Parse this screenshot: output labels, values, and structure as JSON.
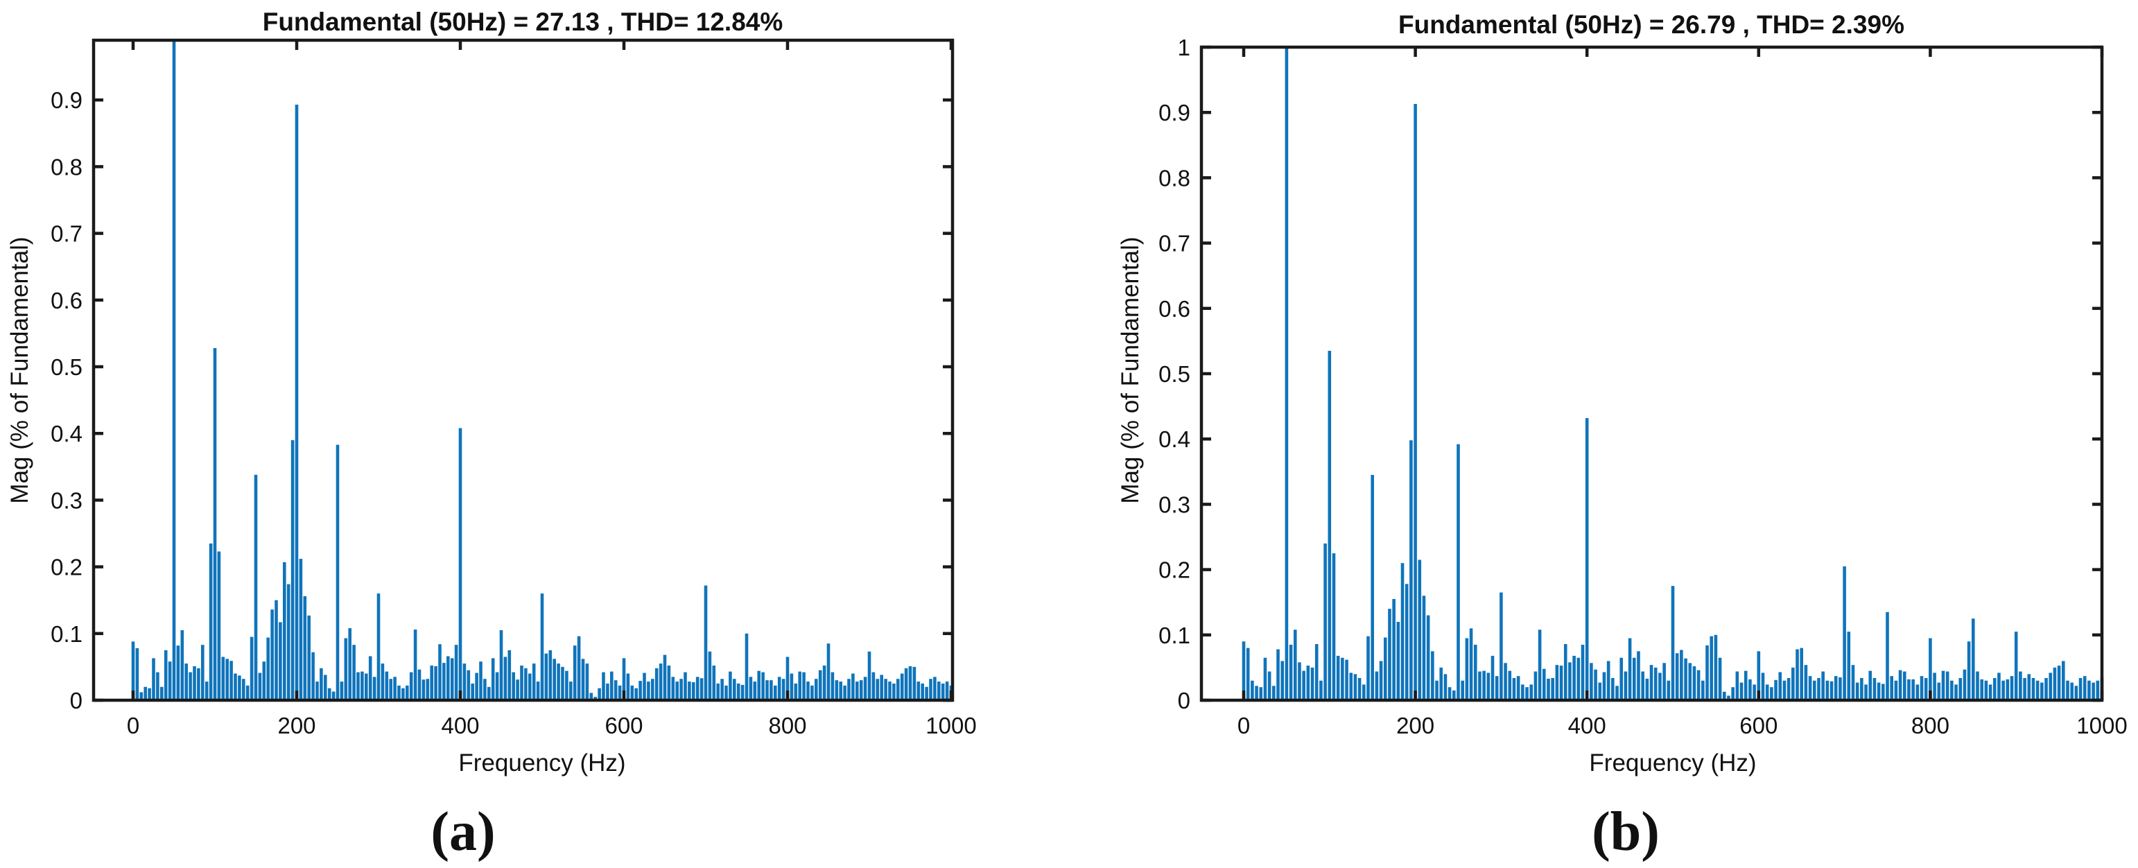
{
  "figure": {
    "background": "#FFFFFF",
    "description": "Two FFT harmonic spectrum plots (MATLAB powergui FFT analysis style), side by side"
  },
  "chart_data": [
    {
      "type": "bar",
      "panel": "a",
      "title": "Fundamental (50Hz) = 27.13 , THD= 12.84%",
      "xlabel": "Frequency (Hz)",
      "ylabel": "Mag (% of Fundamental)",
      "caption": "(a)",
      "fundamental_hz": 50,
      "fundamental_value": "27.13",
      "thd_percent": "12.84",
      "bar_color": "#0F74BB",
      "axis_color": "#1A1A1A",
      "x_start": 0,
      "x_step": 5,
      "xlim": [
        -50,
        1000
      ],
      "ylim": [
        0,
        0.99
      ],
      "grid": false,
      "legend": "none",
      "xticks": [
        0,
        200,
        400,
        600,
        800,
        1000
      ],
      "xtick_labels": [
        "0",
        "200",
        "400",
        "600",
        "800",
        "1000"
      ],
      "yticks": [
        0,
        0.1,
        0.2,
        0.3,
        0.4,
        0.5,
        0.6,
        0.7,
        0.8,
        0.9
      ],
      "ytick_labels": [
        "0",
        "0.1",
        "0.2",
        "0.3",
        "0.4",
        "0.5",
        "0.6",
        "0.7",
        "0.8",
        "0.9"
      ],
      "values": [
        0.088,
        0.078,
        0.012,
        0.02,
        0.018,
        0.063,
        0.042,
        0.02,
        0.075,
        0.058,
        0.99,
        0.082,
        0.105,
        0.055,
        0.042,
        0.051,
        0.048,
        0.083,
        0.028,
        0.235,
        0.528,
        0.223,
        0.065,
        0.062,
        0.059,
        0.04,
        0.037,
        0.032,
        0.022,
        0.095,
        0.338,
        0.041,
        0.058,
        0.094,
        0.136,
        0.15,
        0.117,
        0.207,
        0.174,
        0.39,
        0.893,
        0.212,
        0.156,
        0.127,
        0.072,
        0.028,
        0.048,
        0.038,
        0.018,
        0.013,
        0.383,
        0.028,
        0.093,
        0.108,
        0.083,
        0.042,
        0.043,
        0.04,
        0.066,
        0.035,
        0.16,
        0.055,
        0.043,
        0.032,
        0.035,
        0.022,
        0.018,
        0.022,
        0.042,
        0.106,
        0.046,
        0.031,
        0.032,
        0.052,
        0.051,
        0.084,
        0.056,
        0.066,
        0.063,
        0.083,
        0.408,
        0.055,
        0.045,
        0.025,
        0.041,
        0.058,
        0.032,
        0.02,
        0.063,
        0.042,
        0.105,
        0.065,
        0.075,
        0.042,
        0.031,
        0.052,
        0.048,
        0.04,
        0.055,
        0.028,
        0.16,
        0.07,
        0.075,
        0.062,
        0.055,
        0.05,
        0.044,
        0.028,
        0.082,
        0.096,
        0.062,
        0.055,
        0.011,
        0.005,
        0.018,
        0.042,
        0.025,
        0.043,
        0.03,
        0.022,
        0.063,
        0.04,
        0.022,
        0.018,
        0.029,
        0.041,
        0.028,
        0.032,
        0.048,
        0.055,
        0.068,
        0.052,
        0.035,
        0.028,
        0.032,
        0.042,
        0.028,
        0.027,
        0.035,
        0.033,
        0.172,
        0.073,
        0.052,
        0.025,
        0.032,
        0.022,
        0.043,
        0.032,
        0.025,
        0.023,
        0.1,
        0.035,
        0.028,
        0.044,
        0.042,
        0.03,
        0.03,
        0.022,
        0.035,
        0.032,
        0.065,
        0.04,
        0.025,
        0.043,
        0.042,
        0.028,
        0.022,
        0.032,
        0.045,
        0.052,
        0.085,
        0.042,
        0.03,
        0.028,
        0.022,
        0.032,
        0.04,
        0.028,
        0.03,
        0.035,
        0.073,
        0.042,
        0.032,
        0.038,
        0.032,
        0.028,
        0.025,
        0.032,
        0.04,
        0.048,
        0.051,
        0.05,
        0.028,
        0.025,
        0.02,
        0.032,
        0.035,
        0.028,
        0.025,
        0.028,
        0.022
      ]
    },
    {
      "type": "bar",
      "panel": "b",
      "title": "Fundamental (50Hz) = 26.79 , THD= 2.39%",
      "xlabel": "Frequency (Hz)",
      "ylabel": "Mag (% of Fundamental)",
      "caption": "(b)",
      "fundamental_hz": 50,
      "fundamental_value": "26.79",
      "thd_percent": "2.39",
      "bar_color": "#0F74BB",
      "axis_color": "#1A1A1A",
      "x_start": 0,
      "x_step": 5,
      "xlim": [
        -50,
        1000
      ],
      "ylim": [
        0,
        1.0
      ],
      "grid": false,
      "legend": "none",
      "xticks": [
        0,
        200,
        400,
        600,
        800,
        1000
      ],
      "xtick_labels": [
        "0",
        "200",
        "400",
        "600",
        "800",
        "1000"
      ],
      "yticks": [
        0,
        0.1,
        0.2,
        0.3,
        0.4,
        0.5,
        0.6,
        0.7,
        0.8,
        0.9,
        1
      ],
      "ytick_labels": [
        "0",
        "0.1",
        "0.2",
        "0.3",
        "0.4",
        "0.5",
        "0.6",
        "0.7",
        "0.8",
        "0.9",
        "1"
      ],
      "values": [
        0.09,
        0.08,
        0.03,
        0.022,
        0.02,
        0.065,
        0.044,
        0.022,
        0.078,
        0.06,
        1.0,
        0.085,
        0.108,
        0.058,
        0.045,
        0.053,
        0.05,
        0.086,
        0.03,
        0.24,
        0.535,
        0.225,
        0.068,
        0.065,
        0.062,
        0.042,
        0.04,
        0.034,
        0.024,
        0.098,
        0.345,
        0.044,
        0.06,
        0.096,
        0.14,
        0.155,
        0.12,
        0.21,
        0.178,
        0.398,
        0.913,
        0.215,
        0.16,
        0.13,
        0.075,
        0.03,
        0.05,
        0.04,
        0.02,
        0.015,
        0.392,
        0.03,
        0.095,
        0.11,
        0.085,
        0.044,
        0.045,
        0.042,
        0.068,
        0.037,
        0.165,
        0.057,
        0.045,
        0.034,
        0.037,
        0.024,
        0.02,
        0.024,
        0.044,
        0.108,
        0.048,
        0.033,
        0.034,
        0.054,
        0.053,
        0.086,
        0.058,
        0.068,
        0.065,
        0.085,
        0.432,
        0.057,
        0.047,
        0.027,
        0.043,
        0.06,
        0.034,
        0.022,
        0.065,
        0.044,
        0.095,
        0.065,
        0.075,
        0.044,
        0.033,
        0.054,
        0.05,
        0.042,
        0.057,
        0.03,
        0.175,
        0.072,
        0.077,
        0.064,
        0.057,
        0.052,
        0.046,
        0.03,
        0.084,
        0.098,
        0.1,
        0.065,
        0.013,
        0.007,
        0.02,
        0.044,
        0.027,
        0.045,
        0.032,
        0.024,
        0.075,
        0.042,
        0.024,
        0.02,
        0.031,
        0.043,
        0.03,
        0.034,
        0.05,
        0.078,
        0.08,
        0.054,
        0.037,
        0.03,
        0.034,
        0.044,
        0.03,
        0.029,
        0.037,
        0.035,
        0.205,
        0.105,
        0.054,
        0.027,
        0.034,
        0.024,
        0.045,
        0.034,
        0.027,
        0.025,
        0.135,
        0.037,
        0.03,
        0.046,
        0.044,
        0.032,
        0.032,
        0.024,
        0.037,
        0.034,
        0.095,
        0.042,
        0.027,
        0.045,
        0.044,
        0.03,
        0.024,
        0.034,
        0.047,
        0.09,
        0.125,
        0.044,
        0.032,
        0.03,
        0.024,
        0.034,
        0.042,
        0.03,
        0.032,
        0.037,
        0.105,
        0.044,
        0.034,
        0.04,
        0.034,
        0.03,
        0.027,
        0.034,
        0.042,
        0.05,
        0.053,
        0.06,
        0.03,
        0.027,
        0.022,
        0.034,
        0.037,
        0.03,
        0.027,
        0.03,
        0.035
      ]
    }
  ]
}
